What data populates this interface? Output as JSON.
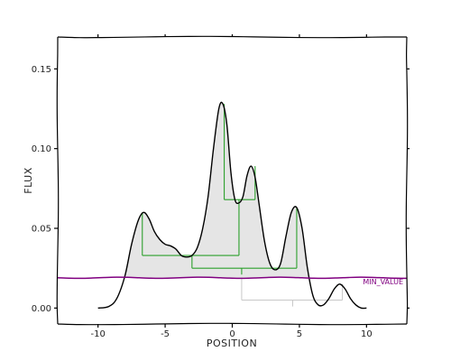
{
  "chart_data": {
    "type": "area",
    "title": "",
    "xlabel": "POSITION",
    "ylabel": "FLUX",
    "xlim": [
      -13,
      13
    ],
    "ylim": [
      -0.01,
      0.17
    ],
    "xticks": [
      -10,
      -5,
      0,
      5,
      10
    ],
    "yticks": [
      0.0,
      0.05,
      0.1,
      0.15
    ],
    "xtick_labels": [
      "-10",
      "-5",
      "0",
      "5",
      "10"
    ],
    "ytick_labels": [
      "0.00",
      "0.05",
      "0.10",
      "0.15"
    ],
    "grid": false,
    "legend": "none",
    "curve": {
      "x": [
        -10,
        -9.2,
        -8.6,
        -8.0,
        -7.5,
        -7.0,
        -6.6,
        -6.2,
        -5.8,
        -5.4,
        -5.0,
        -4.6,
        -4.2,
        -3.8,
        -3.4,
        -3.0,
        -2.6,
        -2.2,
        -1.8,
        -1.4,
        -1.0,
        -0.7,
        -0.4,
        -0.1,
        0.2,
        0.5,
        0.8,
        1.1,
        1.4,
        1.7,
        2.0,
        2.4,
        2.8,
        3.2,
        3.6,
        4.0,
        4.4,
        4.8,
        5.2,
        5.6,
        6.0,
        6.4,
        6.8,
        7.2,
        7.6,
        8.0,
        8.4,
        8.8,
        9.2,
        9.6,
        10.0
      ],
      "y": [
        0.0,
        0.001,
        0.006,
        0.02,
        0.04,
        0.055,
        0.06,
        0.056,
        0.048,
        0.043,
        0.04,
        0.039,
        0.037,
        0.033,
        0.032,
        0.033,
        0.038,
        0.05,
        0.07,
        0.1,
        0.125,
        0.128,
        0.115,
        0.085,
        0.068,
        0.066,
        0.07,
        0.083,
        0.089,
        0.082,
        0.065,
        0.042,
        0.028,
        0.024,
        0.028,
        0.045,
        0.06,
        0.063,
        0.05,
        0.025,
        0.008,
        0.002,
        0.002,
        0.006,
        0.012,
        0.015,
        0.012,
        0.006,
        0.002,
        0.0,
        0.0
      ],
      "color": "#000000",
      "fill": "#e5e5e5",
      "fill_threshold": 0.019
    },
    "min_value_line": {
      "label": "MIN_VALUE",
      "y": 0.019,
      "color": "#800080"
    },
    "tree_color": "#2ca02c",
    "tree_gray_color": "#c8c8c8",
    "tree_segments": [
      {
        "kind": "v",
        "x": -6.7,
        "y1": 0.06,
        "y2": 0.033
      },
      {
        "kind": "h",
        "y": 0.033,
        "x1": -6.7,
        "x2": 0.5
      },
      {
        "kind": "v",
        "x": -0.6,
        "y1": 0.128,
        "y2": 0.068
      },
      {
        "kind": "h",
        "y": 0.068,
        "x1": -0.6,
        "x2": 1.7
      },
      {
        "kind": "v",
        "x": 1.7,
        "y1": 0.089,
        "y2": 0.068
      },
      {
        "kind": "v",
        "x": 0.5,
        "y1": 0.068,
        "y2": 0.033
      },
      {
        "kind": "v",
        "x": -3.0,
        "y1": 0.033,
        "y2": 0.025
      },
      {
        "kind": "h",
        "y": 0.025,
        "x1": -3.0,
        "x2": 4.8
      },
      {
        "kind": "v",
        "x": 4.8,
        "y1": 0.063,
        "y2": 0.025
      },
      {
        "kind": "v",
        "x": 0.7,
        "y1": 0.025,
        "y2": 0.021
      }
    ],
    "gray_segments": [
      {
        "kind": "v",
        "x": 0.7,
        "y1": 0.019,
        "y2": 0.005
      },
      {
        "kind": "h",
        "y": 0.005,
        "x1": 0.7,
        "x2": 8.2
      },
      {
        "kind": "v",
        "x": 8.2,
        "y1": 0.015,
        "y2": 0.005
      },
      {
        "kind": "v",
        "x": 4.5,
        "y1": 0.005,
        "y2": 0.001
      }
    ]
  }
}
